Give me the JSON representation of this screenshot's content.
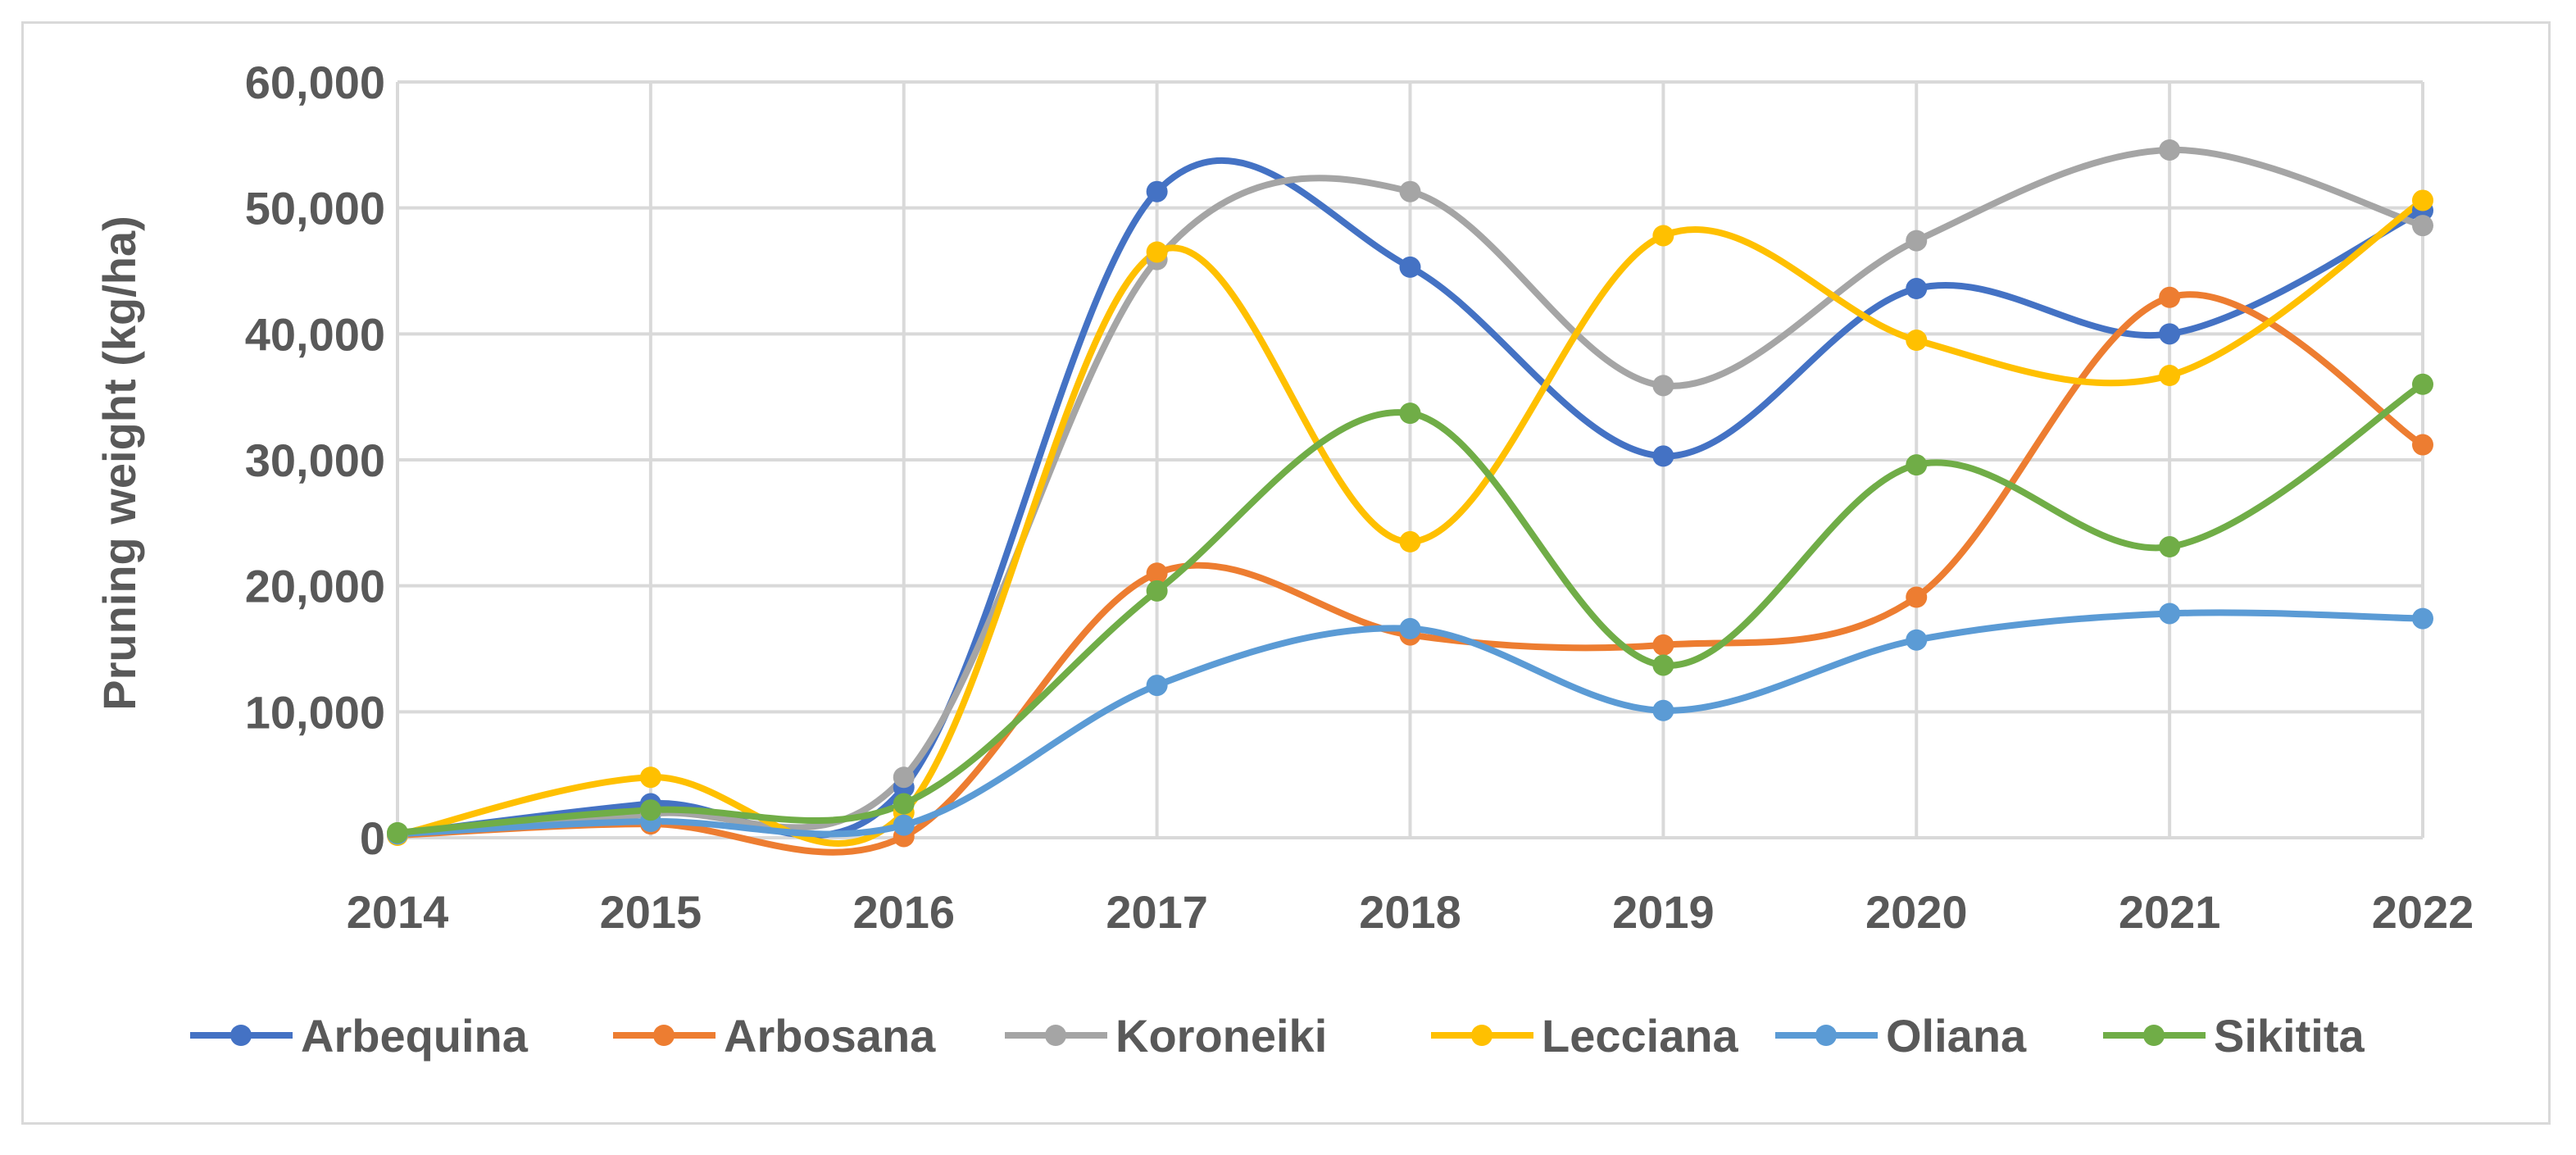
{
  "chart_data": {
    "type": "line",
    "smooth": true,
    "title": "",
    "xlabel": "",
    "ylabel": "Pruning weight (kg/ha)",
    "ylim": [
      0,
      60000
    ],
    "ytick_step": 10000,
    "ytick_labels": [
      "0",
      "10,000",
      "20,000",
      "30,000",
      "40,000",
      "50,000",
      "60,000"
    ],
    "categories": [
      "2014",
      "2015",
      "2016",
      "2017",
      "2018",
      "2019",
      "2020",
      "2021",
      "2022"
    ],
    "grid": true,
    "legend_position": "bottom",
    "series": [
      {
        "name": "Arbequina",
        "color": "#4472C4",
        "values": [
          300,
          2700,
          4000,
          51300,
          45300,
          30300,
          43600,
          40000,
          49800
        ]
      },
      {
        "name": "Arbosana",
        "color": "#ED7D31",
        "values": [
          200,
          1100,
          100,
          21000,
          16100,
          15300,
          19100,
          42900,
          31200
        ]
      },
      {
        "name": "Koroneiki",
        "color": "#A5A5A5",
        "values": [
          300,
          1900,
          4800,
          45900,
          51300,
          35900,
          47400,
          54600,
          48600
        ]
      },
      {
        "name": "Lecciana",
        "color": "#FFC000",
        "values": [
          200,
          4800,
          2000,
          46500,
          23500,
          47800,
          39500,
          36700,
          50600
        ]
      },
      {
        "name": "Oliana",
        "color": "#5B9BD5",
        "values": [
          300,
          1300,
          1000,
          12100,
          16600,
          10100,
          15700,
          17800,
          17400
        ]
      },
      {
        "name": "Sikitita",
        "color": "#70AD47",
        "values": [
          400,
          2200,
          2700,
          19600,
          33700,
          13700,
          29600,
          23100,
          36000
        ]
      }
    ]
  }
}
